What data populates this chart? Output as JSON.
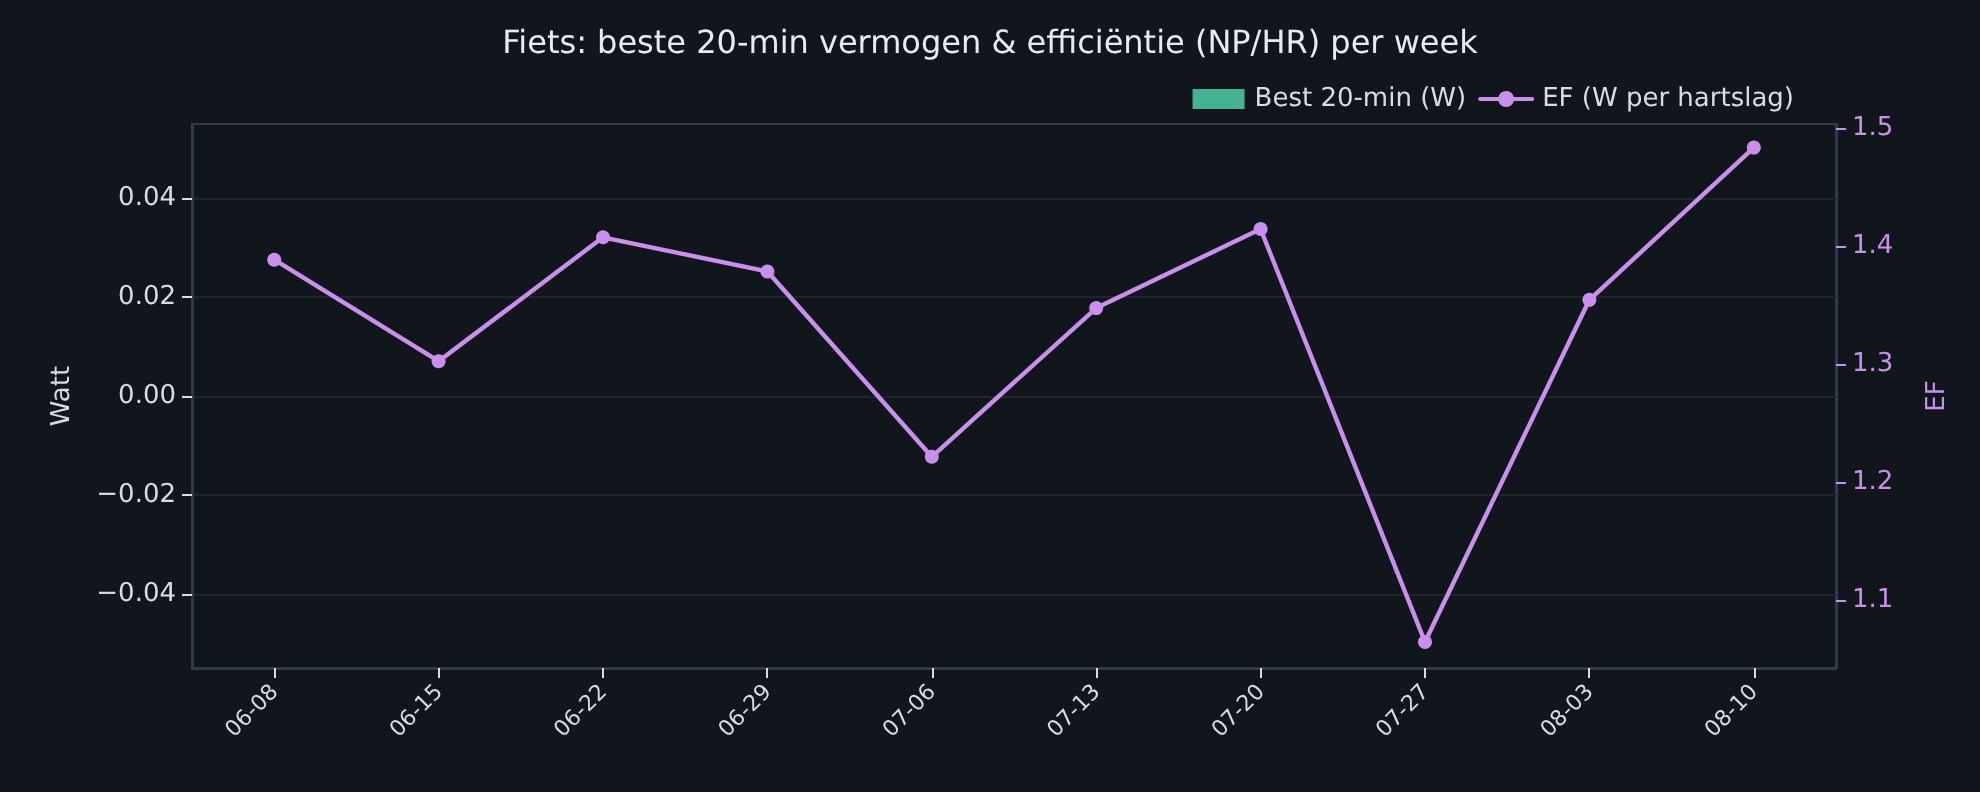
{
  "chart_data": {
    "type": "bar",
    "title": "Fiets: beste 20-min vermogen & efficiëntie (NP/HR) per week",
    "ylabel": "Watt",
    "y2label": "EF",
    "categories": [
      "06-08",
      "06-15",
      "06-22",
      "06-29",
      "07-06",
      "07-13",
      "07-20",
      "07-27",
      "08-03",
      "08-10"
    ],
    "series": [
      {
        "name": "Best 20-min (W)",
        "color": "#45b38f",
        "values": [
          null,
          null,
          null,
          null,
          null,
          null,
          null,
          null,
          null,
          null
        ]
      },
      {
        "name": "EF (W per hartslag)",
        "type": "line",
        "axis": "y2",
        "color": "#c890ea",
        "values": [
          1.388,
          1.302,
          1.407,
          1.378,
          1.221,
          1.347,
          1.414,
          1.064,
          1.354,
          1.483
        ]
      }
    ],
    "ylim": [
      -0.055,
      0.055
    ],
    "yticks": [
      -0.04,
      -0.02,
      {
        "value": 0,
        "label": "0.00"
      },
      0.02,
      0.04
    ],
    "y2lim": [
      1.042,
      1.503
    ],
    "y2ticks": [
      1.1,
      1.2,
      1.3,
      1.4,
      1.5
    ],
    "grid": "y",
    "legend": "top right",
    "marker": "circle",
    "line_style": "solid"
  }
}
